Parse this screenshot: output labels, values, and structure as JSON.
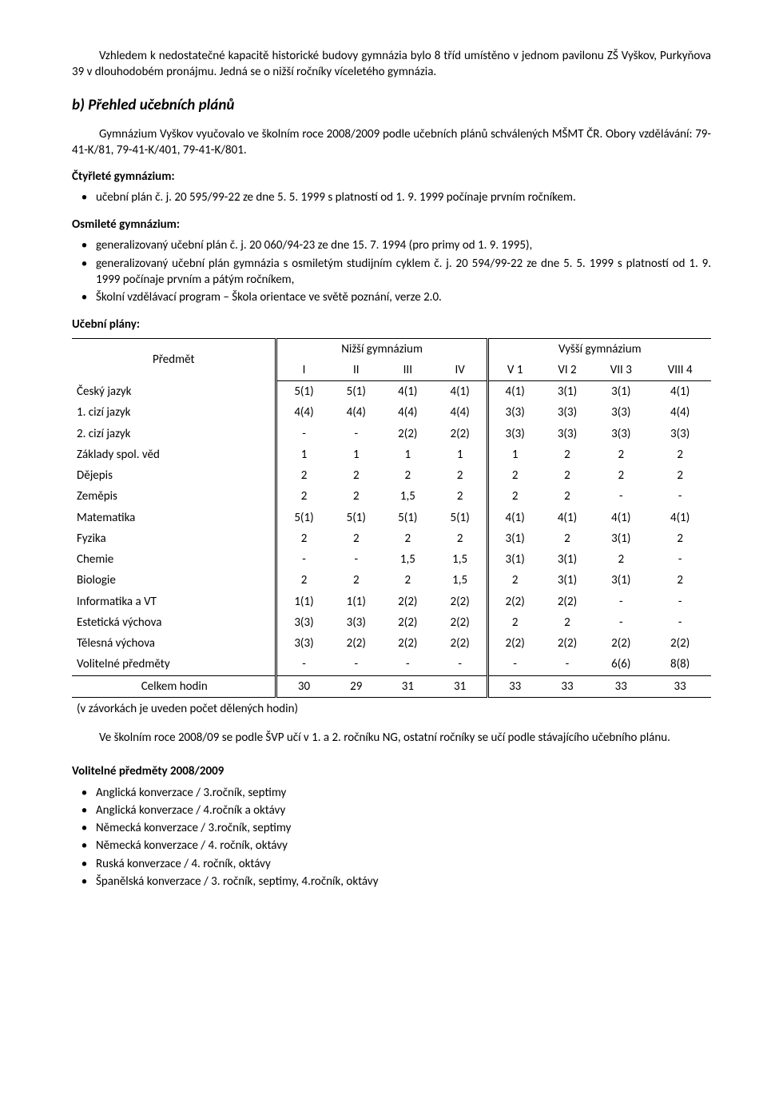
{
  "intro": "Vzhledem k nedostatečné kapacitě historické budovy gymnázia bylo 8 tříd umístěno v jednom pavilonu ZŠ Vyškov, Purkyňova 39 v dlouhodobém pronájmu. Jedná se o nižší ročníky víceletého gymnázia.",
  "section_b_title": "b) Přehled učebních plánů",
  "section_b_intro": "Gymnázium Vyškov vyučovalo ve školním roce 2008/2009 podle učebních plánů schválených MŠMT ČR. Obory vzdělávání: 79-41-K/81, 79-41-K/401, 79-41-K/801.",
  "ctyrlete_head": "Čtyřleté gymnázium:",
  "ctyrlete_items": [
    "učební plán č. j. 20 595/99-22 ze dne 5. 5. 1999 s platností od 1. 9. 1999 počínaje prvním ročníkem."
  ],
  "osmilete_head": "Osmileté gymnázium:",
  "osmilete_items": [
    "generalizovaný učební plán č. j. 20 060/94-23 ze dne 15. 7. 1994 (pro primy od 1. 9. 1995),",
    "generalizovaný učební plán gymnázia s osmiletým studijním cyklem č. j. 20 594/99-22 ze dne 5. 5. 1999 s platností od 1. 9. 1999 počínaje prvním a pátým ročníkem,",
    "Školní vzdělávací program – Škola orientace ve světě poznání, verze 2.0."
  ],
  "ucebni_plany_head": "Učební plány:",
  "table": {
    "col_predmet": "Předmět",
    "group_nizsi": "Nižší gymnázium",
    "group_vyssi": "Vyšší gymnázium",
    "cols_nizsi": [
      "I",
      "II",
      "III",
      "IV"
    ],
    "cols_vyssi": [
      "V 1",
      "VI 2",
      "VII 3",
      "VIII 4"
    ],
    "rows": [
      {
        "s": "Český jazyk",
        "n": [
          "5(1)",
          "5(1)",
          "4(1)",
          "4(1)"
        ],
        "v": [
          "4(1)",
          "3(1)",
          "3(1)",
          "4(1)"
        ]
      },
      {
        "s": "1. cizí jazyk",
        "n": [
          "4(4)",
          "4(4)",
          "4(4)",
          "4(4)"
        ],
        "v": [
          "3(3)",
          "3(3)",
          "3(3)",
          "4(4)"
        ]
      },
      {
        "s": "2. cizí jazyk",
        "n": [
          "-",
          "-",
          "2(2)",
          "2(2)"
        ],
        "v": [
          "3(3)",
          "3(3)",
          "3(3)",
          "3(3)"
        ]
      },
      {
        "s": "Základy spol. věd",
        "n": [
          "1",
          "1",
          "1",
          "1"
        ],
        "v": [
          "1",
          "2",
          "2",
          "2"
        ]
      },
      {
        "s": "Dějepis",
        "n": [
          "2",
          "2",
          "2",
          "2"
        ],
        "v": [
          "2",
          "2",
          "2",
          "2"
        ]
      },
      {
        "s": "Zeměpis",
        "n": [
          "2",
          "2",
          "1,5",
          "2"
        ],
        "v": [
          "2",
          "2",
          "-",
          "-"
        ]
      },
      {
        "s": "Matematika",
        "n": [
          "5(1)",
          "5(1)",
          "5(1)",
          "5(1)"
        ],
        "v": [
          "4(1)",
          "4(1)",
          "4(1)",
          "4(1)"
        ]
      },
      {
        "s": "Fyzika",
        "n": [
          "2",
          "2",
          "2",
          "2"
        ],
        "v": [
          "3(1)",
          "2",
          "3(1)",
          "2"
        ]
      },
      {
        "s": "Chemie",
        "n": [
          "-",
          "-",
          "1,5",
          "1,5"
        ],
        "v": [
          "3(1)",
          "3(1)",
          "2",
          "-"
        ]
      },
      {
        "s": "Biologie",
        "n": [
          "2",
          "2",
          "2",
          "1,5"
        ],
        "v": [
          "2",
          "3(1)",
          "3(1)",
          "2"
        ]
      },
      {
        "s": "Informatika a VT",
        "n": [
          "1(1)",
          "1(1)",
          "2(2)",
          "2(2)"
        ],
        "v": [
          "2(2)",
          "2(2)",
          "-",
          "-"
        ]
      },
      {
        "s": "Estetická výchova",
        "n": [
          "3(3)",
          "3(3)",
          "2(2)",
          "2(2)"
        ],
        "v": [
          "2",
          "2",
          "-",
          "-"
        ]
      },
      {
        "s": "Tělesná výchova",
        "n": [
          "3(3)",
          "2(2)",
          "2(2)",
          "2(2)"
        ],
        "v": [
          "2(2)",
          "2(2)",
          "2(2)",
          "2(2)"
        ]
      },
      {
        "s": "Volitelné předměty",
        "n": [
          "-",
          "-",
          "-",
          "-"
        ],
        "v": [
          "-",
          "-",
          "6(6)",
          "8(8)"
        ]
      }
    ],
    "total_label": "Celkem hodin",
    "total_n": [
      "30",
      "29",
      "31",
      "31"
    ],
    "total_v": [
      "33",
      "33",
      "33",
      "33"
    ],
    "note": "(v závorkách je uveden počet dělených hodin)"
  },
  "after_table": "Ve školním roce 2008/09 se podle ŠVP učí v 1. a 2. ročníku NG, ostatní ročníky se učí podle stávajícího učebního plánu.",
  "volitelne_head": "Volitelné předměty  2008/2009",
  "volitelne_items": [
    "Anglická konverzace / 3.ročník, septimy",
    "Anglická konverzace / 4.ročník a oktávy",
    "Německá konverzace / 3.ročník, septimy",
    "Německá konverzace / 4. ročník, oktávy",
    "Ruská konverzace / 4. ročník, oktávy",
    "Španělská konverzace / 3. ročník, septimy, 4.ročník, oktávy"
  ]
}
